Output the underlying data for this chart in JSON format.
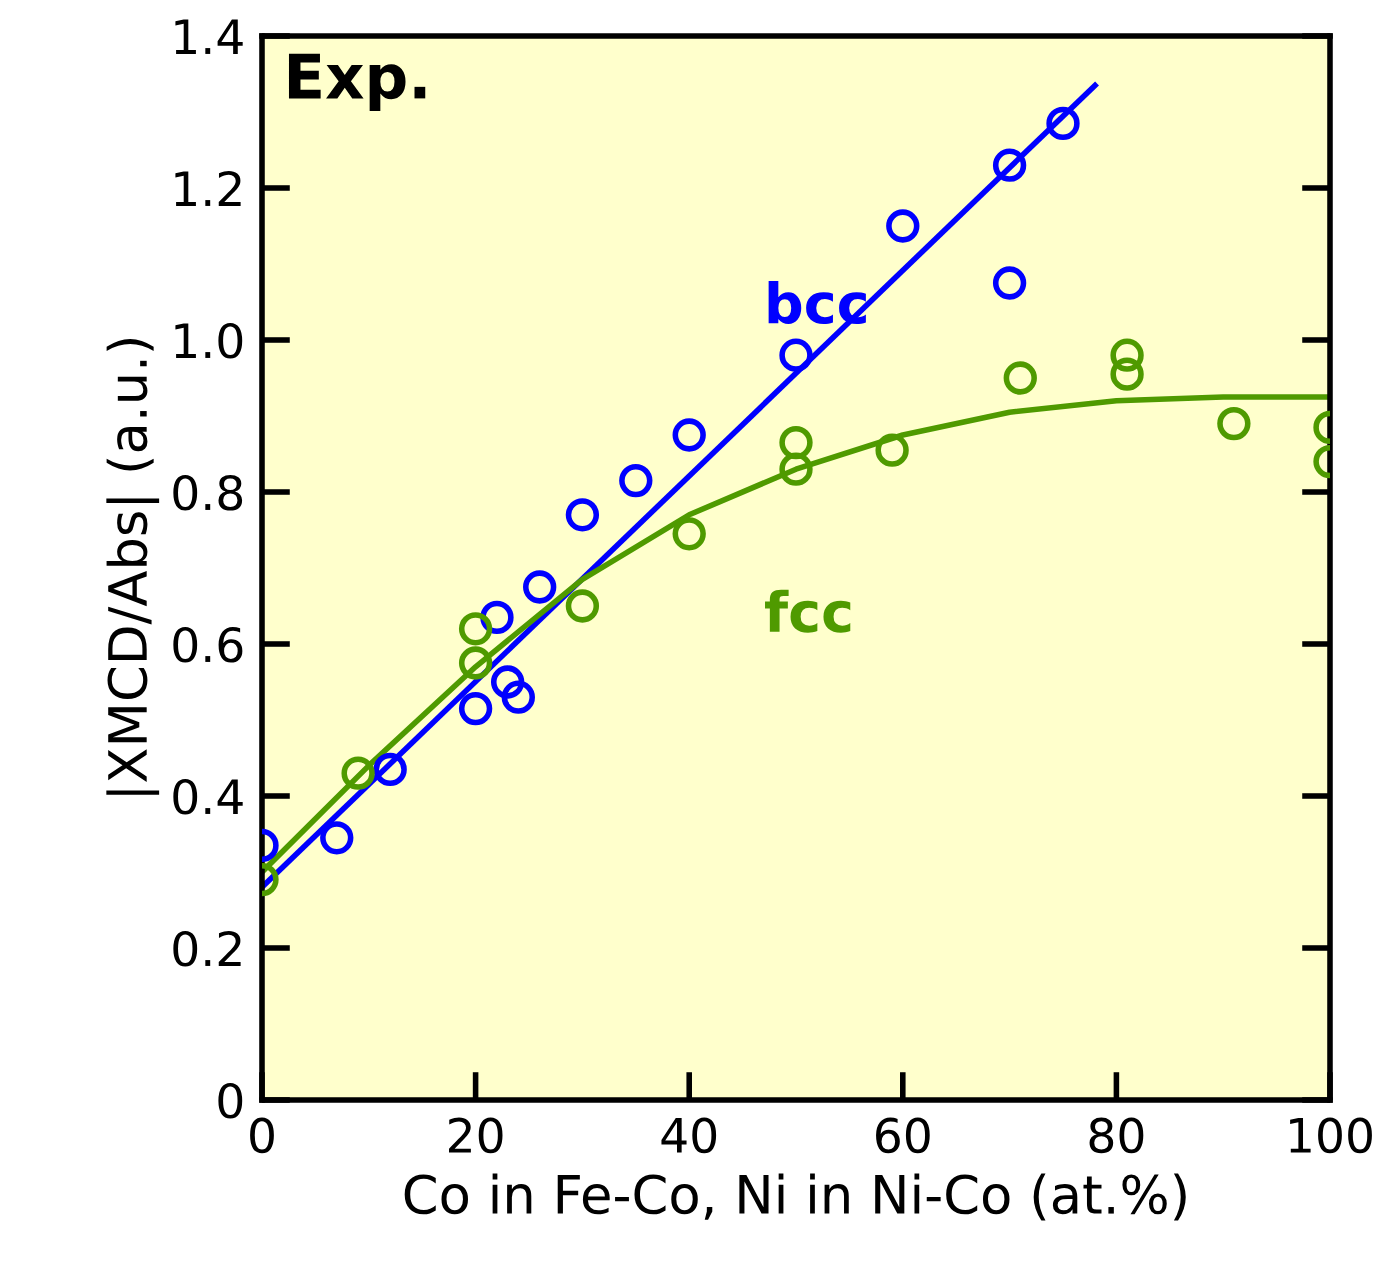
{
  "chart_data": {
    "type": "scatter",
    "xlabel": "Co in Fe-Co, Ni in Ni-Co (at.%)",
    "ylabel": "|XMCD/Abs| (a.u.)",
    "annotations": [
      "Exp."
    ],
    "xlim": [
      0,
      100
    ],
    "xticks": [
      0,
      20,
      40,
      60,
      80,
      100
    ],
    "ylim": [
      0,
      1.4
    ],
    "yticks": [
      0,
      0.2,
      0.4,
      0.6,
      0.8,
      {
        "value": 1,
        "label": "1.0"
      },
      1.2,
      1.4
    ],
    "grid": false,
    "series": [
      {
        "name": "bcc",
        "marker": "circle",
        "color": "#0000ff",
        "x": [
          0,
          7,
          12,
          20,
          22,
          23,
          24,
          26,
          30,
          35,
          40,
          50,
          60,
          70,
          70,
          75
        ],
        "values": [
          0.335,
          0.345,
          0.435,
          0.515,
          0.635,
          0.55,
          0.53,
          0.675,
          0.77,
          0.815,
          0.875,
          0.98,
          1.15,
          1.075,
          1.23,
          1.285
        ]
      },
      {
        "name": "fcc",
        "marker": "circle",
        "color": "#4f9a00",
        "x": [
          0,
          9,
          20,
          20,
          30,
          40,
          50,
          50,
          59,
          71,
          81,
          81,
          91,
          100,
          100
        ],
        "values": [
          0.29,
          0.43,
          0.575,
          0.62,
          0.65,
          0.745,
          0.83,
          0.865,
          0.855,
          0.95,
          0.955,
          0.98,
          0.89,
          0.885,
          0.84
        ]
      },
      {
        "type": "line",
        "color": "#0000ff",
        "x": [
          0,
          78
        ],
        "values": [
          0.28,
          1.335
        ]
      },
      {
        "type": "line",
        "color": "#4f9a00",
        "x": [
          0,
          10,
          20,
          30,
          40,
          50,
          60,
          70,
          80,
          90,
          100
        ],
        "values": [
          0.3,
          0.44,
          0.57,
          0.685,
          0.77,
          0.83,
          0.875,
          0.905,
          0.92,
          0.925,
          0.925
        ]
      }
    ]
  }
}
